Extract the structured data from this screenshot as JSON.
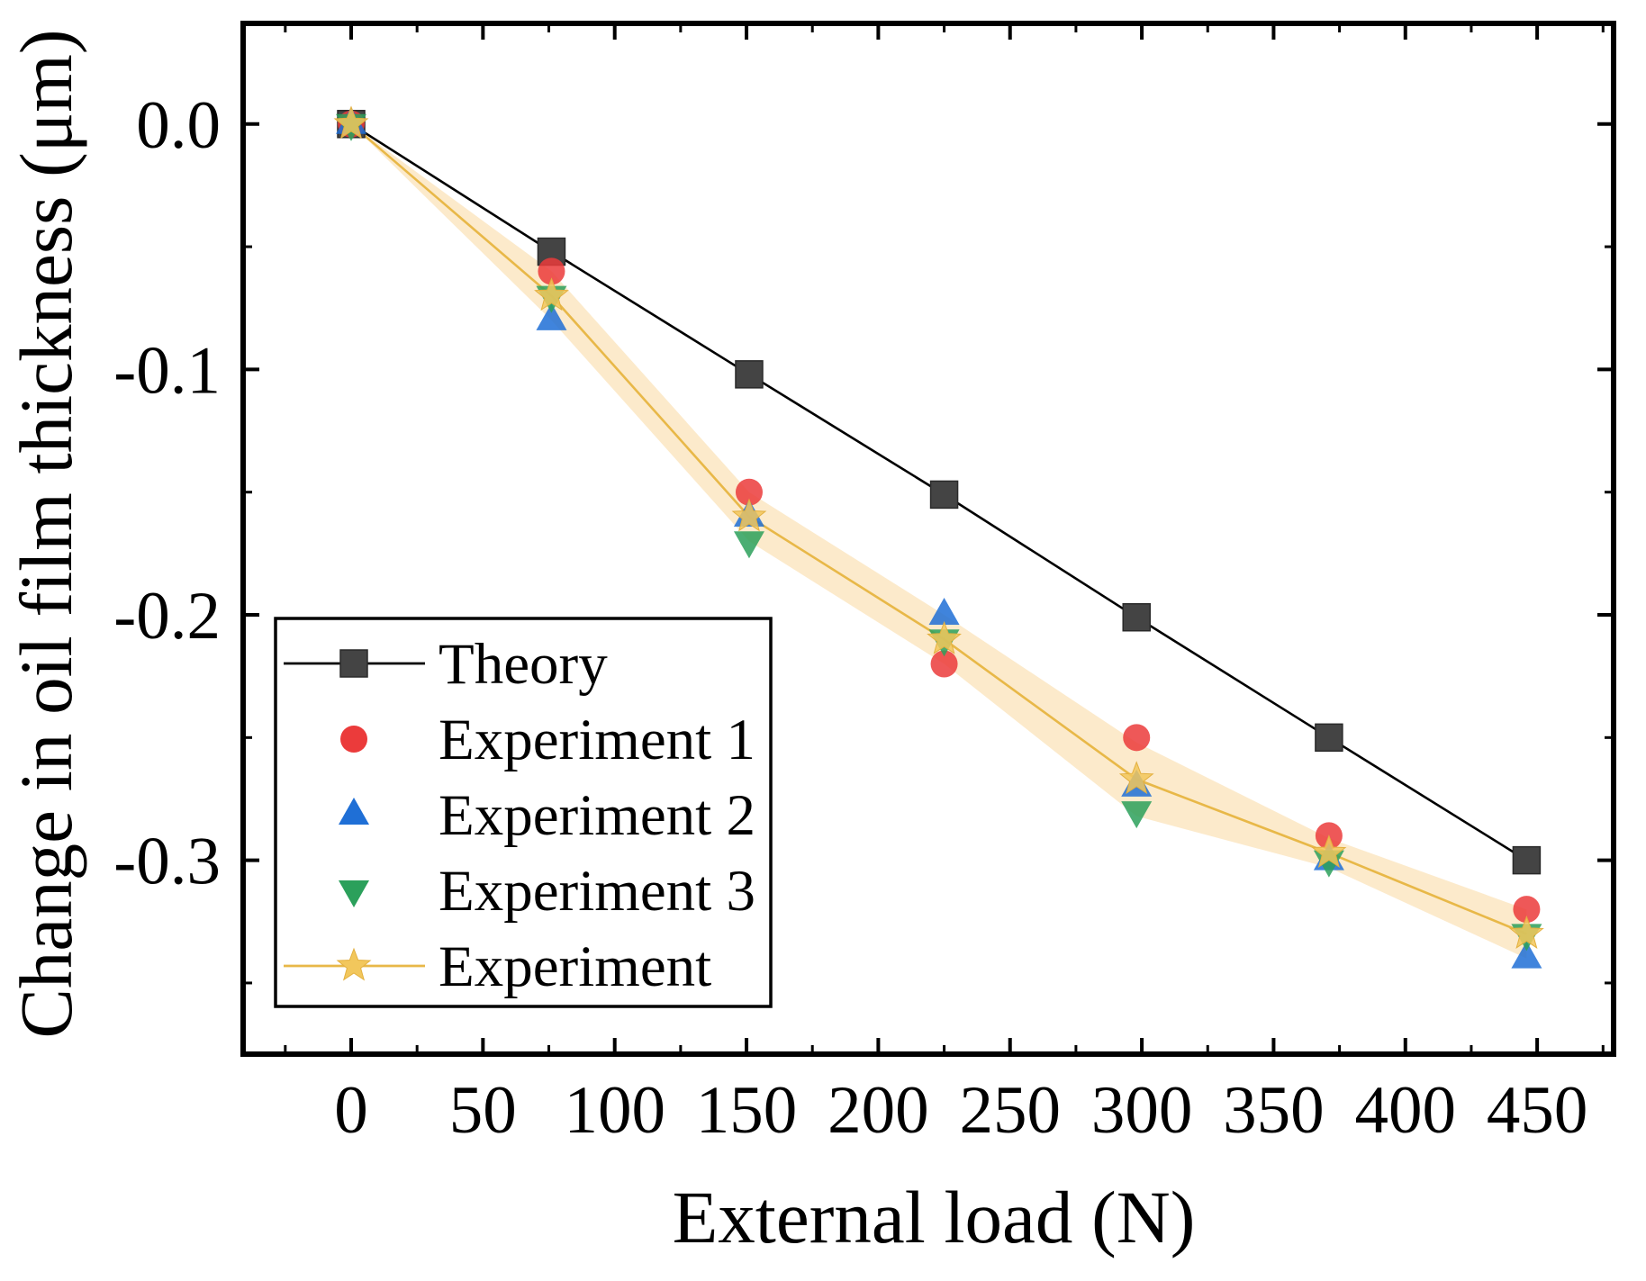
{
  "chart_data": {
    "type": "line",
    "title": "",
    "xlabel": "External load (N)",
    "ylabel": "Change in oil film thickness (μm)",
    "xlim": [
      -41,
      479
    ],
    "ylim": [
      -0.379,
      0.041
    ],
    "x_ticks": [
      0,
      50,
      100,
      150,
      200,
      250,
      300,
      350,
      400,
      450
    ],
    "x_tick_labels": [
      "0",
      "50",
      "100",
      "150",
      "200",
      "250",
      "300",
      "350",
      "400",
      "450"
    ],
    "y_ticks": [
      0,
      -0.1,
      -0.2,
      -0.3
    ],
    "y_tick_labels": [
      "0.0",
      "-0.1",
      "-0.2",
      "-0.3"
    ],
    "grid": false,
    "legend_position": "lower-left",
    "x": [
      0,
      76,
      151,
      225,
      298,
      371,
      446
    ],
    "series": [
      {
        "name": "Theory",
        "line": true,
        "marker": "square",
        "color": "#444444",
        "line_color": "#000000",
        "values": [
          0,
          -0.052,
          -0.102,
          -0.151,
          -0.201,
          -0.25,
          -0.3
        ]
      },
      {
        "name": "Experiment 1",
        "line": false,
        "marker": "circle",
        "color": "#EB3B3B",
        "values": [
          0,
          -0.06,
          -0.15,
          -0.22,
          -0.25,
          -0.29,
          -0.32
        ]
      },
      {
        "name": "Experiment 2",
        "line": false,
        "marker": "triangle-up",
        "color": "#1F6FD6",
        "values": [
          0,
          -0.08,
          -0.16,
          -0.2,
          -0.27,
          -0.3,
          -0.34
        ]
      },
      {
        "name": "Experiment 3",
        "line": false,
        "marker": "triangle-down",
        "color": "#2BA05B",
        "values": [
          0,
          -0.07,
          -0.17,
          -0.21,
          -0.28,
          -0.3,
          -0.33
        ]
      },
      {
        "name": "Experiment",
        "line": true,
        "marker": "star",
        "color": "#F2C75C",
        "line_color": "#E8B848",
        "band_color": "#FBE6C2",
        "values": [
          0,
          -0.07,
          -0.16,
          -0.21,
          -0.267,
          -0.297,
          -0.33
        ],
        "std": [
          0,
          0.01,
          0.01,
          0.01,
          0.015,
          0.006,
          0.01
        ]
      }
    ]
  }
}
